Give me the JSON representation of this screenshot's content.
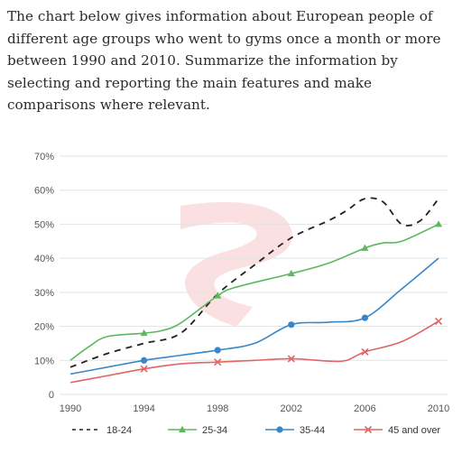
{
  "prompt": {
    "text": "The chart below gives information about European people of different age groups who went to gyms once a month or more between 1990 and 2010. Summarize the information by selecting and reporting the main features and make comparisons where relevant."
  },
  "chart_data": {
    "type": "line",
    "title": "",
    "xlabel": "",
    "ylabel": "",
    "x_ticks": [
      "1990",
      "1994",
      "1998",
      "2002",
      "2006",
      "2010"
    ],
    "y_ticks": [
      "0",
      "10%",
      "20%",
      "30%",
      "40%",
      "50%",
      "60%",
      "70%"
    ],
    "xlim": [
      1990,
      2010
    ],
    "ylim": [
      0,
      70
    ],
    "grid": true,
    "legend_position": "bottom",
    "series": [
      {
        "name": "18-24",
        "color": "#222222",
        "style": "dashed",
        "marker": "none",
        "points": [
          [
            1990,
            8
          ],
          [
            1992,
            12
          ],
          [
            1994,
            15
          ],
          [
            1996,
            18
          ],
          [
            1998,
            29.5
          ],
          [
            2000,
            38
          ],
          [
            2002,
            46
          ],
          [
            2004,
            51
          ],
          [
            2005,
            54
          ],
          [
            2006,
            57.5
          ],
          [
            2007,
            56.5
          ],
          [
            2008,
            50
          ],
          [
            2009,
            51
          ],
          [
            2010,
            57.5
          ]
        ],
        "marked": []
      },
      {
        "name": "25-34",
        "color": "#5cb85c",
        "style": "solid",
        "marker": "triangle",
        "points": [
          [
            1990,
            10
          ],
          [
            1991,
            14
          ],
          [
            1992,
            17
          ],
          [
            1994,
            18
          ],
          [
            1995,
            18.8
          ],
          [
            1996,
            21
          ],
          [
            1998,
            29
          ],
          [
            1999,
            31.5
          ],
          [
            2002,
            35.5
          ],
          [
            2004,
            38.5
          ],
          [
            2006,
            43
          ],
          [
            2007,
            44.5
          ],
          [
            2008,
            45
          ],
          [
            2010,
            50
          ]
        ],
        "marked": [
          1994,
          1998,
          2002,
          2006,
          2010
        ]
      },
      {
        "name": "35-44",
        "color": "#3a87c8",
        "style": "solid",
        "marker": "circle",
        "points": [
          [
            1990,
            6
          ],
          [
            1992,
            8
          ],
          [
            1994,
            10
          ],
          [
            1996,
            11.5
          ],
          [
            1998,
            13
          ],
          [
            2000,
            15
          ],
          [
            2002,
            20.5
          ],
          [
            2004,
            21.2
          ],
          [
            2006,
            22.5
          ],
          [
            2008,
            31
          ],
          [
            2010,
            40
          ]
        ],
        "marked": [
          1994,
          1998,
          2002,
          2006
        ]
      },
      {
        "name": "45 and over",
        "color": "#e06666",
        "style": "solid",
        "marker": "cross",
        "points": [
          [
            1990,
            3.5
          ],
          [
            1992,
            5.5
          ],
          [
            1994,
            7.5
          ],
          [
            1996,
            9
          ],
          [
            1998,
            9.5
          ],
          [
            2000,
            10
          ],
          [
            2002,
            10.5
          ],
          [
            2004,
            9.8
          ],
          [
            2005,
            10
          ],
          [
            2006,
            12.5
          ],
          [
            2008,
            15.5
          ],
          [
            2010,
            21.5
          ]
        ],
        "marked": [
          1994,
          1998,
          2002,
          2006,
          2010
        ]
      }
    ]
  }
}
